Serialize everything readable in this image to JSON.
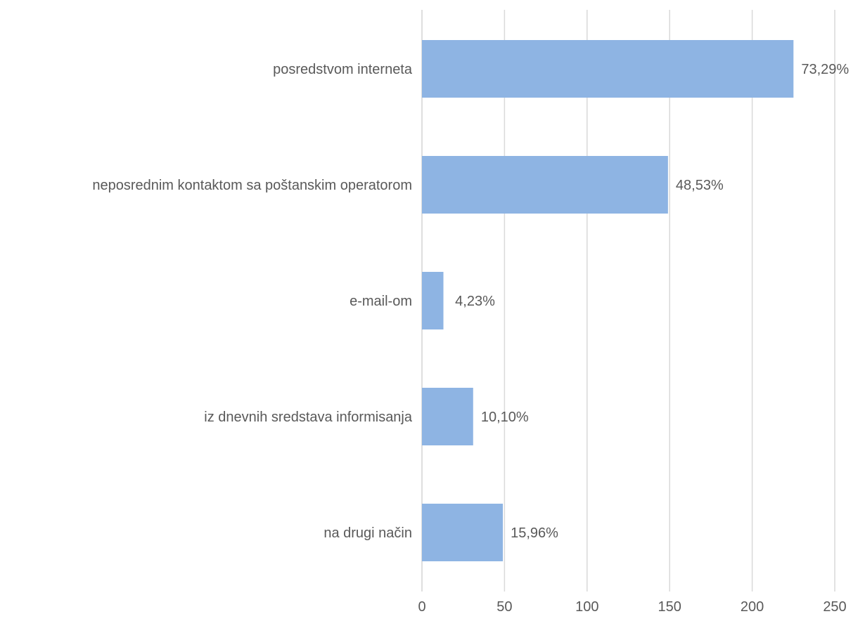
{
  "chart_data": {
    "type": "bar",
    "orientation": "horizontal",
    "title": "",
    "xlabel": "",
    "ylabel": "",
    "xlim": [
      0,
      250
    ],
    "ticks": [
      0,
      50,
      100,
      150,
      200,
      250
    ],
    "tick_labels": [
      "0",
      "50",
      "100",
      "150",
      "200",
      "250"
    ],
    "grid": true,
    "legend": "none",
    "categories": [
      "posredstvom interneta",
      "neposrednim kontaktom sa poštanskim operatorom",
      "e-mail-om",
      "iz dnevnih sredstava informisanja",
      "na drugi način"
    ],
    "values": [
      225,
      149,
      13,
      31,
      49
    ],
    "data_labels": [
      "73,29%",
      "48,53%",
      "4,23%",
      "10,10%",
      "15,96%"
    ],
    "colors": {
      "bar": "#8eb4e3",
      "grid": "#d9d9d9",
      "text": "#595959"
    }
  }
}
